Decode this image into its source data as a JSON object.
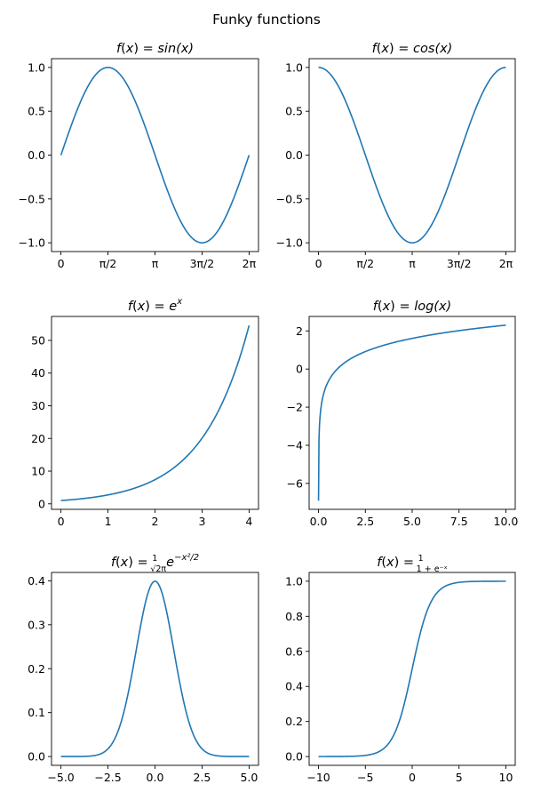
{
  "figure": {
    "suptitle": "Funky functions",
    "line_color": "#1f77b4"
  },
  "chart_data": [
    {
      "type": "line",
      "function": "sin",
      "title": {
        "lhs": "f(x) = ",
        "rhs": "sin(x)"
      },
      "xlim": [
        -0.314,
        6.597
      ],
      "ylim": [
        -1.1,
        1.1
      ],
      "x_range": [
        0,
        6.283
      ],
      "xticks": [
        0,
        1.571,
        3.142,
        4.712,
        6.283
      ],
      "xtick_labels": [
        "0",
        "π/2",
        "π",
        "3π/2",
        "2π"
      ],
      "yticks": [
        -1.0,
        -0.5,
        0.0,
        0.5,
        1.0
      ],
      "ytick_labels": [
        "−1.0",
        "−0.5",
        "0.0",
        "0.5",
        "1.0"
      ],
      "grid": false
    },
    {
      "type": "line",
      "function": "cos",
      "title": {
        "lhs": "f(x) = ",
        "rhs": "cos(x)"
      },
      "xlim": [
        -0.314,
        6.597
      ],
      "ylim": [
        -1.1,
        1.1
      ],
      "x_range": [
        0,
        6.283
      ],
      "xticks": [
        0,
        1.571,
        3.142,
        4.712,
        6.283
      ],
      "xtick_labels": [
        "0",
        "π/2",
        "π",
        "3π/2",
        "2π"
      ],
      "yticks": [
        -1.0,
        -0.5,
        0.0,
        0.5,
        1.0
      ],
      "ytick_labels": [
        "−1.0",
        "−0.5",
        "0.0",
        "0.5",
        "1.0"
      ],
      "grid": false
    },
    {
      "type": "line",
      "function": "exp",
      "title": {
        "lhs": "f(x) = ",
        "base": "e",
        "sup": "x"
      },
      "xlim": [
        -0.2,
        4.2
      ],
      "ylim": [
        -1.69,
        57.33
      ],
      "x_range": [
        0,
        4
      ],
      "xticks": [
        0,
        1,
        2,
        3,
        4
      ],
      "xtick_labels": [
        "0",
        "1",
        "2",
        "3",
        "4"
      ],
      "yticks": [
        0,
        10,
        20,
        30,
        40,
        50
      ],
      "ytick_labels": [
        "0",
        "10",
        "20",
        "30",
        "40",
        "50"
      ],
      "grid": false
    },
    {
      "type": "line",
      "function": "log",
      "title": {
        "lhs": "f(x) = ",
        "rhs": "log(x)"
      },
      "xlim": [
        -0.5,
        10.5
      ],
      "ylim": [
        -7.36,
        2.76
      ],
      "x_range": [
        0.001,
        10
      ],
      "xticks": [
        0,
        2.5,
        5,
        7.5,
        10
      ],
      "xtick_labels": [
        "0.0",
        "2.5",
        "5.0",
        "7.5",
        "10.0"
      ],
      "yticks": [
        -6,
        -4,
        -2,
        0,
        2
      ],
      "ytick_labels": [
        "−6",
        "−4",
        "−2",
        "0",
        "2"
      ],
      "grid": false
    },
    {
      "type": "line",
      "function": "gaussian",
      "title": {
        "lhs": "f(x) = ",
        "num": "1",
        "den": "√2π",
        "base": "e",
        "sup": "−x²/2"
      },
      "xlim": [
        -5.5,
        5.5
      ],
      "ylim": [
        -0.02,
        0.419
      ],
      "x_range": [
        -5,
        5
      ],
      "xticks": [
        -5,
        -2.5,
        0,
        2.5,
        5
      ],
      "xtick_labels": [
        "−5.0",
        "−2.5",
        "0.0",
        "2.5",
        "5.0"
      ],
      "yticks": [
        0.0,
        0.1,
        0.2,
        0.3,
        0.4
      ],
      "ytick_labels": [
        "0.0",
        "0.1",
        "0.2",
        "0.3",
        "0.4"
      ],
      "grid": false
    },
    {
      "type": "line",
      "function": "sigmoid",
      "title": {
        "lhs": "f(x) = ",
        "num": "1",
        "den": "1 + e⁻ˣ"
      },
      "xlim": [
        -11,
        11
      ],
      "ylim": [
        -0.05,
        1.05
      ],
      "x_range": [
        -10,
        10
      ],
      "xticks": [
        -10,
        -5,
        0,
        5,
        10
      ],
      "xtick_labels": [
        "−10",
        "−5",
        "0",
        "5",
        "10"
      ],
      "yticks": [
        0.0,
        0.2,
        0.4,
        0.6,
        0.8,
        1.0
      ],
      "ytick_labels": [
        "0.0",
        "0.2",
        "0.4",
        "0.6",
        "0.8",
        "1.0"
      ],
      "grid": false
    }
  ]
}
